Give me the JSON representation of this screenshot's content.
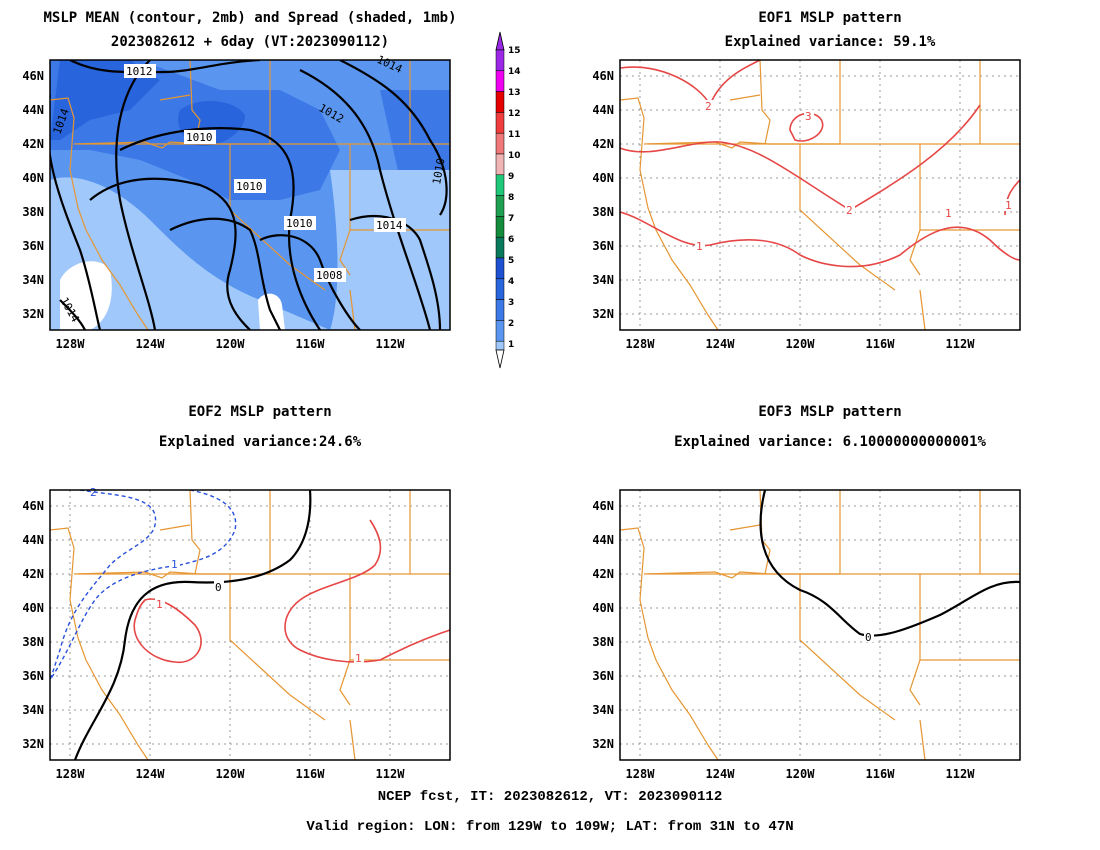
{
  "panels": [
    {
      "id": "mean",
      "title": "MSLP MEAN (contour, 2mb) and Spread (shaded, 1mb)",
      "subtitle": "2023082612 + 6day (VT:2023090112)"
    },
    {
      "id": "eof1",
      "title": "EOF1 MSLP pattern",
      "subtitle": "Explained variance: 59.1%"
    },
    {
      "id": "eof2",
      "title": "EOF2 MSLP pattern",
      "subtitle": "Explained variance:24.6%"
    },
    {
      "id": "eof3",
      "title": "EOF3 MSLP pattern",
      "subtitle": "Explained variance: 6.10000000000001%"
    }
  ],
  "axes": {
    "lat_labels": [
      "46N",
      "44N",
      "42N",
      "40N",
      "38N",
      "36N",
      "34N",
      "32N"
    ],
    "lon_labels": [
      "128W",
      "124W",
      "120W",
      "116W",
      "112W"
    ]
  },
  "colorbar": {
    "levels": [
      "15",
      "14",
      "13",
      "12",
      "11",
      "10",
      "9",
      "8",
      "7",
      "6",
      "5",
      "4",
      "3",
      "2",
      "1"
    ],
    "colors": [
      "#9a28e6",
      "#f000f0",
      "#e60000",
      "#f03c3c",
      "#f07878",
      "#f0b4b4",
      "#1ec878",
      "#1ea050",
      "#148c3c",
      "#0a785a",
      "#1e50d2",
      "#2864dc",
      "#3c78e6",
      "#5a96f0",
      "#a0c8fa"
    ]
  },
  "contour_labels": {
    "mean": [
      "1012",
      "1014",
      "1012",
      "1014",
      "1012",
      "1014",
      "1010",
      "1010",
      "1010",
      "1014",
      "1008",
      "1014",
      "1010"
    ],
    "eof1": [
      "2",
      "3",
      "2",
      "1",
      "1",
      "1"
    ],
    "eof2": [
      "2",
      "1",
      "0",
      "1",
      "1"
    ],
    "eof3": [
      "0"
    ]
  },
  "footer": {
    "line1": "NCEP fcst, IT: 2023082612, VT: 2023090112",
    "line2": "Valid region: LON: from 129W to 109W; LAT: from 31N to 47N"
  },
  "colors": {
    "state_lines": "#e69632",
    "positive": "#e64646",
    "negative": "#2850dc",
    "zero": "#000000"
  }
}
